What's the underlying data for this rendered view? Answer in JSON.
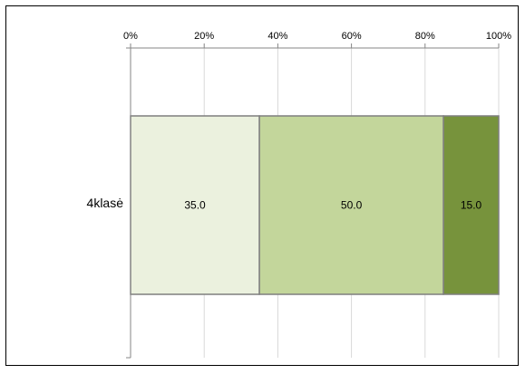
{
  "chart_data": {
    "type": "bar",
    "orientation": "horizontal",
    "stacked": "percent",
    "title": "",
    "xlabel": "",
    "ylabel": "",
    "categories": [
      "4klasė"
    ],
    "series": [
      {
        "values": [
          35.0
        ],
        "color": "#ebf1de"
      },
      {
        "values": [
          50.0
        ],
        "color": "#c3d69b"
      },
      {
        "values": [
          15.0
        ],
        "color": "#77933c"
      }
    ],
    "data_labels": [
      [
        "35.0"
      ],
      [
        "50.0"
      ],
      [
        "15.0"
      ]
    ],
    "xlim": [
      0,
      100
    ],
    "x_ticks": [
      "0%",
      "20%",
      "40%",
      "60%",
      "80%",
      "100%"
    ],
    "x_tick_values": [
      0,
      20,
      40,
      60,
      80,
      100
    ],
    "x_axis_position": "top",
    "grid": true,
    "legend": "none",
    "colors": {
      "grid": "#d9d9d9",
      "axis": "#868686",
      "bar_border": "#7f7f7f",
      "frame": "#000000"
    }
  }
}
